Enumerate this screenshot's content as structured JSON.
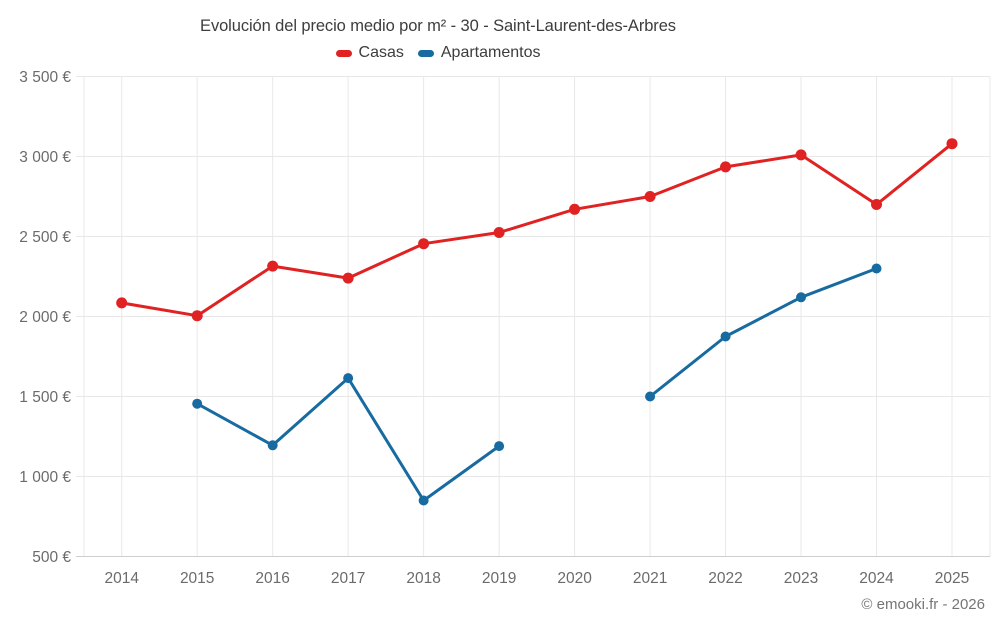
{
  "chart_data": {
    "type": "line",
    "title": "Evolución del precio medio por m² - 30 - Saint-Laurent-des-Arbres",
    "x": [
      "2014",
      "2015",
      "2016",
      "2017",
      "2018",
      "2019",
      "2020",
      "2021",
      "2022",
      "2023",
      "2024",
      "2025"
    ],
    "ylim": [
      500,
      3500
    ],
    "ytick_step": 500,
    "ytick_labels": [
      "500 €",
      "1 000 €",
      "1 500 €",
      "2 000 €",
      "2 500 €",
      "3 000 €",
      "3 500 €"
    ],
    "grid": true,
    "legend_position": "top",
    "series": [
      {
        "name": "Casas",
        "color": "#e02222",
        "values": [
          2085,
          2005,
          2315,
          2240,
          2455,
          2525,
          2670,
          2750,
          2935,
          3010,
          2700,
          3080
        ]
      },
      {
        "name": "Apartamentos",
        "color": "#176ba0",
        "values": [
          null,
          1455,
          1195,
          1615,
          850,
          1190,
          null,
          1500,
          1875,
          2120,
          2300,
          null
        ]
      }
    ],
    "colors": {
      "grid_line": "#e8e8e8",
      "axis_line": "#cfcfcf",
      "tick_label": "#6b6b6b",
      "title_text": "#3d3d3d",
      "credit_text": "#757575"
    }
  },
  "footer": {
    "credit": "© emooki.fr - 2026"
  }
}
